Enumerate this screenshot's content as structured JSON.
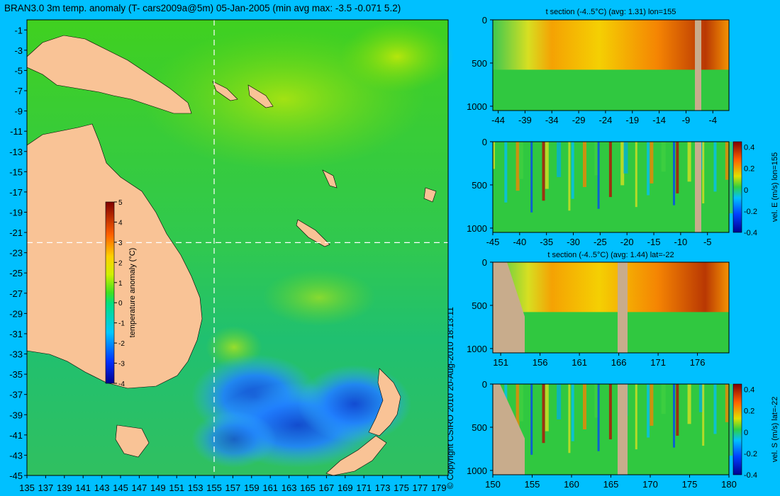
{
  "title": "BRAN3.0 3m temp. anomaly (T- cars2009a@5m) 05-Jan-2005 (min avg max: -3.5 -0.071 5.2)",
  "copyright": "© Copyright CSIRO 2010   20-Aug-2010 18:13:11",
  "colors": {
    "background": "#00c0ff",
    "land": "#f9c396",
    "section_land": "#c8ac8c",
    "crosshair": "#ffffff"
  },
  "chart_data": [
    {
      "id": "map",
      "type": "heatmap",
      "title": "BRAN3.0 3m temp. anomaly (T- cars2009a@5m) 05-Jan-2005 (min avg max: -3.5 -0.071 5.2)",
      "x_ticks": [
        "135",
        "137",
        "139",
        "141",
        "143",
        "145",
        "147",
        "149",
        "151",
        "153",
        "155",
        "157",
        "159",
        "161",
        "163",
        "165",
        "167",
        "169",
        "171",
        "173",
        "175",
        "177",
        "179"
      ],
      "y_ticks": [
        "-1",
        "-3",
        "-5",
        "-7",
        "-9",
        "-11",
        "-13",
        "-15",
        "-17",
        "-19",
        "-21",
        "-23",
        "-25",
        "-27",
        "-29",
        "-31",
        "-33",
        "-35",
        "-37",
        "-39",
        "-41",
        "-43",
        "-45"
      ],
      "xlim": [
        135,
        180
      ],
      "ylim": [
        -45,
        0
      ],
      "crosshair": {
        "lon": 155,
        "lat": -22
      },
      "colorbar": {
        "label": "temperature anomaly (°C)",
        "range": [
          -4,
          5
        ],
        "ticks": [
          "5",
          "4",
          "3",
          "2",
          "1",
          "0",
          "-1",
          "-2",
          "-3",
          "-4"
        ]
      },
      "stats": {
        "min": -3.5,
        "avg": -0.071,
        "max": 5.2
      }
    },
    {
      "id": "t-section-lon",
      "type": "heatmap",
      "title": "t section (-4..5°C) (avg: 1.31) lon=155",
      "x_ticks": [
        "-44",
        "-39",
        "-34",
        "-29",
        "-24",
        "-19",
        "-14",
        "-9",
        "-4"
      ],
      "y_ticks": [
        "0",
        "500",
        "1000"
      ],
      "xlim": [
        -45,
        -1
      ],
      "ylim": [
        1050,
        0
      ]
    },
    {
      "id": "vel-e-section",
      "type": "heatmap",
      "title": "",
      "x_ticks": [
        "-45",
        "-40",
        "-35",
        "-30",
        "-25",
        "-20",
        "-15",
        "-10",
        "-5"
      ],
      "y_ticks": [
        "0",
        "500",
        "1000"
      ],
      "xlim": [
        -45,
        -1
      ],
      "ylim": [
        1050,
        0
      ],
      "colorbar": {
        "label": "vel. E (m/s) lon=155",
        "range": [
          -0.4,
          0.45
        ],
        "ticks": [
          "0.4",
          "0.2",
          "0",
          "-0.2",
          "-0.4"
        ]
      }
    },
    {
      "id": "t-section-lat",
      "type": "heatmap",
      "title": "t section (-4..5°C) (avg: 1.44) lat=-22",
      "x_ticks": [
        "151",
        "156",
        "161",
        "166",
        "171",
        "176"
      ],
      "y_ticks": [
        "0",
        "500",
        "1000"
      ],
      "xlim": [
        150,
        180
      ],
      "ylim": [
        1050,
        0
      ]
    },
    {
      "id": "vel-s-section",
      "type": "heatmap",
      "title": "",
      "x_ticks": [
        "150",
        "155",
        "160",
        "165",
        "170",
        "175",
        "180"
      ],
      "y_ticks": [
        "0",
        "500",
        "1000"
      ],
      "xlim": [
        150,
        180
      ],
      "ylim": [
        1050,
        0
      ],
      "colorbar": {
        "label": "vel. S (m/s) lat=-22",
        "range": [
          -0.4,
          0.45
        ],
        "ticks": [
          "0.4",
          "0.2",
          "0",
          "-0.2",
          "-0.4"
        ]
      }
    }
  ]
}
